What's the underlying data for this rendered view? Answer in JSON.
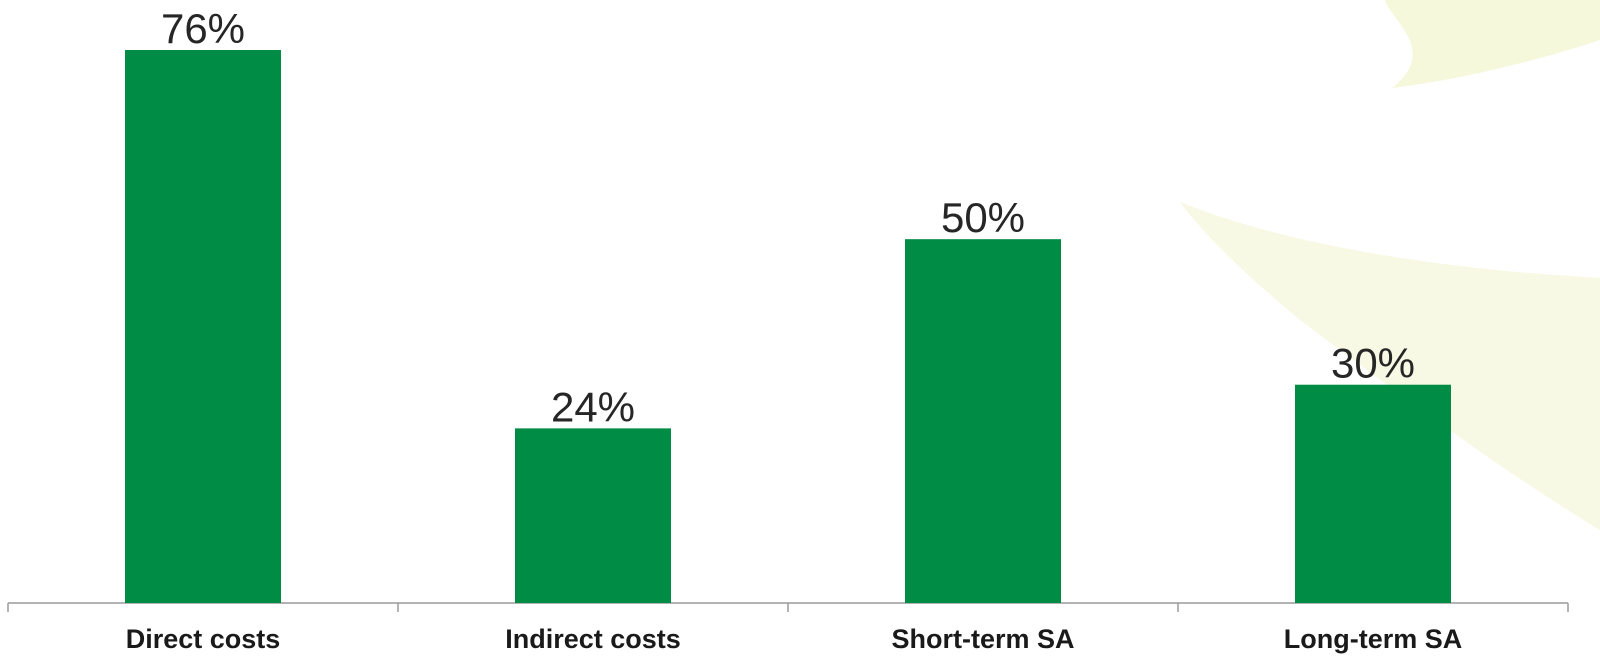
{
  "chart_data": {
    "type": "bar",
    "categories": [
      "Direct costs",
      "Indirect costs",
      "Short-term SA",
      "Long-term SA"
    ],
    "values": [
      76,
      24,
      50,
      30
    ],
    "value_labels": [
      "76%",
      "24%",
      "50%",
      "30%"
    ],
    "color": "#008c45"
  }
}
